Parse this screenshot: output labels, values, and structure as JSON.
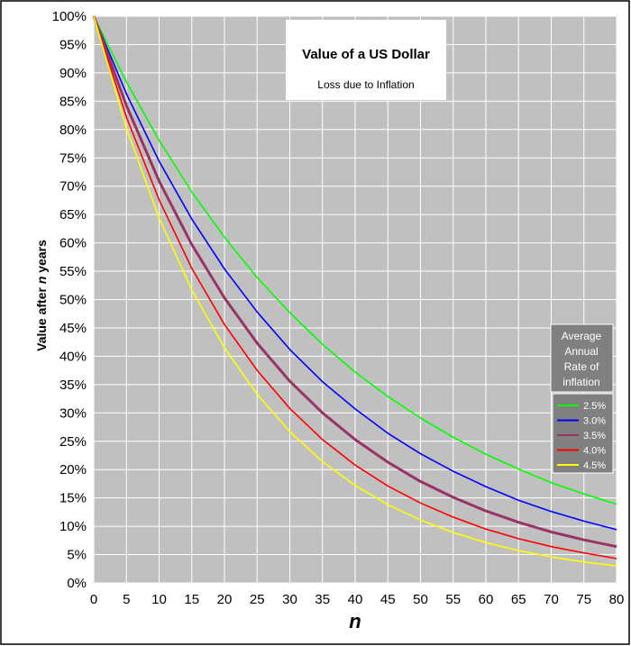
{
  "chart_data": {
    "type": "line",
    "title": "Value of a US Dollar",
    "subtitle": "Loss due to Inflation",
    "xlabel": "n",
    "ylabel": "Value after n years",
    "xlim": [
      0,
      80
    ],
    "ylim": [
      0,
      100
    ],
    "x_ticks": [
      0,
      5,
      10,
      15,
      20,
      25,
      30,
      35,
      40,
      45,
      50,
      55,
      60,
      65,
      70,
      75,
      80
    ],
    "y_ticks": [
      "0%",
      "5%",
      "10%",
      "15%",
      "20%",
      "25%",
      "30%",
      "35%",
      "40%",
      "45%",
      "50%",
      "55%",
      "60%",
      "65%",
      "70%",
      "75%",
      "80%",
      "85%",
      "90%",
      "95%",
      "100%"
    ],
    "grid": true,
    "legend": {
      "title_lines": [
        "Average",
        "Annual",
        "Rate of",
        "inflation"
      ],
      "placement": "right"
    },
    "plot_background": "#c0c0c0",
    "x": [
      0,
      5,
      10,
      15,
      20,
      25,
      30,
      35,
      40,
      45,
      50,
      55,
      60,
      65,
      70,
      75,
      80
    ],
    "series": [
      {
        "name": "2.5%",
        "color": "#00ff00",
        "values": [
          100,
          88.4,
          78.1,
          69.0,
          61.0,
          53.9,
          47.7,
          42.1,
          37.2,
          32.9,
          29.1,
          25.7,
          22.7,
          20.1,
          17.7,
          15.7,
          13.9
        ]
      },
      {
        "name": "3.0%",
        "color": "#0000ff",
        "values": [
          100,
          86.3,
          74.4,
          64.2,
          55.4,
          47.8,
          41.2,
          35.5,
          30.7,
          26.4,
          22.8,
          19.7,
          17.0,
          14.6,
          12.6,
          10.9,
          9.4
        ]
      },
      {
        "name": "3.5%",
        "color": "#993366",
        "values": [
          100,
          84.2,
          70.9,
          59.7,
          50.3,
          42.3,
          35.6,
          30.0,
          25.3,
          21.3,
          17.9,
          15.1,
          12.7,
          10.7,
          9.0,
          7.6,
          6.4
        ]
      },
      {
        "name": "4.0%",
        "color": "#ff0000",
        "values": [
          100,
          82.2,
          67.6,
          55.5,
          45.6,
          37.5,
          30.8,
          25.3,
          20.8,
          17.1,
          14.1,
          11.6,
          9.5,
          7.8,
          6.4,
          5.3,
          4.3
        ]
      },
      {
        "name": "4.5%",
        "color": "#ffff00",
        "values": [
          100,
          80.2,
          64.4,
          51.7,
          41.5,
          33.3,
          26.7,
          21.4,
          17.2,
          13.8,
          11.1,
          8.9,
          7.1,
          5.7,
          4.6,
          3.7,
          3.0
        ]
      }
    ]
  }
}
